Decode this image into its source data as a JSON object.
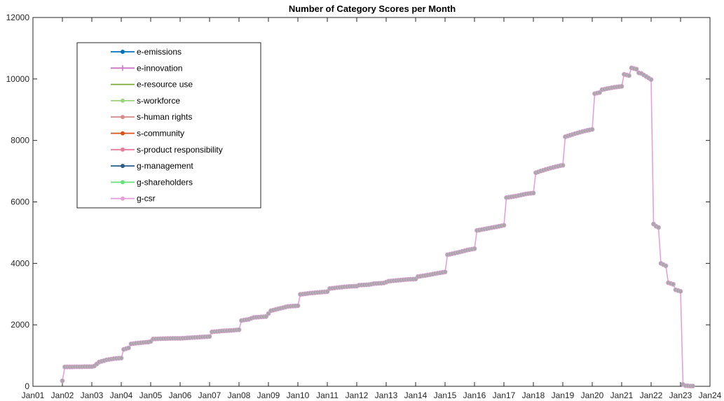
{
  "chart_data": {
    "type": "line",
    "title": "Number of  Category Scores per Month",
    "xlabel": "",
    "ylabel": "",
    "x_unit": "month",
    "xlim": [
      "2001-01",
      "2024-01"
    ],
    "ylim": [
      0,
      12000
    ],
    "grid": false,
    "legend_position": "top-left",
    "x_ticks": [
      "Jan01",
      "Jan02",
      "Jan03",
      "Jan04",
      "Jan05",
      "Jan06",
      "Jan07",
      "Jan08",
      "Jan09",
      "Jan10",
      "Jan11",
      "Jan12",
      "Jan13",
      "Jan14",
      "Jan15",
      "Jan16",
      "Jan17",
      "Jan18",
      "Jan19",
      "Jan20",
      "Jan21",
      "Jan22",
      "Jan23",
      "Jan24"
    ],
    "y_ticks": [
      0,
      2000,
      4000,
      6000,
      8000,
      10000,
      12000
    ],
    "legend": [
      {
        "name": "e-emissions",
        "color": "#0072BD",
        "marker": "circle"
      },
      {
        "name": "e-innovation",
        "color": "#C875C4",
        "marker": "plus"
      },
      {
        "name": "e-resource use",
        "color": "#77AC30",
        "marker": "none"
      },
      {
        "name": "s-workforce",
        "color": "#9BD37E",
        "marker": "circle"
      },
      {
        "name": "s-human rights",
        "color": "#D48C8C",
        "marker": "circle"
      },
      {
        "name": "s-community",
        "color": "#D95319",
        "marker": "circle"
      },
      {
        "name": "s-product responsibility",
        "color": "#E87A9A",
        "marker": "circle"
      },
      {
        "name": "g-management",
        "color": "#2B5D8C",
        "marker": "circle"
      },
      {
        "name": "g-shareholders",
        "color": "#66E27A",
        "marker": "circle"
      },
      {
        "name": "g-csr",
        "color": "#E6A0D8",
        "marker": "circle"
      }
    ],
    "line_color": "#E6A0D8",
    "marker_color": "#A8A8A8",
    "series_data": [
      [
        "2002-01",
        180
      ],
      [
        "2002-02",
        630
      ],
      [
        "2002-05",
        630
      ],
      [
        "2002-06",
        635
      ],
      [
        "2002-09",
        635
      ],
      [
        "2002-10",
        640
      ],
      [
        "2003-01",
        640
      ],
      [
        "2003-02",
        660
      ],
      [
        "2003-04",
        790
      ],
      [
        "2003-07",
        860
      ],
      [
        "2003-10",
        900
      ],
      [
        "2004-01",
        920
      ],
      [
        "2004-02",
        1200
      ],
      [
        "2004-04",
        1250
      ],
      [
        "2004-05",
        1380
      ],
      [
        "2004-08",
        1410
      ],
      [
        "2004-12",
        1440
      ],
      [
        "2005-01",
        1460
      ],
      [
        "2005-02",
        1540
      ],
      [
        "2005-06",
        1550
      ],
      [
        "2005-10",
        1560
      ],
      [
        "2006-01",
        1560
      ],
      [
        "2006-04",
        1575
      ],
      [
        "2006-09",
        1600
      ],
      [
        "2007-01",
        1620
      ],
      [
        "2007-02",
        1770
      ],
      [
        "2007-06",
        1800
      ],
      [
        "2007-10",
        1820
      ],
      [
        "2008-01",
        1840
      ],
      [
        "2008-02",
        2140
      ],
      [
        "2008-05",
        2180
      ],
      [
        "2008-07",
        2240
      ],
      [
        "2008-12",
        2270
      ],
      [
        "2009-02",
        2460
      ],
      [
        "2009-06",
        2540
      ],
      [
        "2009-09",
        2600
      ],
      [
        "2010-01",
        2620
      ],
      [
        "2010-02",
        2990
      ],
      [
        "2010-06",
        3030
      ],
      [
        "2010-10",
        3060
      ],
      [
        "2011-01",
        3080
      ],
      [
        "2011-02",
        3180
      ],
      [
        "2011-06",
        3220
      ],
      [
        "2011-10",
        3250
      ],
      [
        "2012-01",
        3260
      ],
      [
        "2012-02",
        3290
      ],
      [
        "2012-06",
        3310
      ],
      [
        "2012-08",
        3340
      ],
      [
        "2012-12",
        3360
      ],
      [
        "2013-02",
        3420
      ],
      [
        "2013-06",
        3450
      ],
      [
        "2013-10",
        3480
      ],
      [
        "2014-01",
        3490
      ],
      [
        "2014-02",
        3570
      ],
      [
        "2014-06",
        3620
      ],
      [
        "2014-10",
        3680
      ],
      [
        "2015-01",
        3720
      ],
      [
        "2015-02",
        4280
      ],
      [
        "2015-06",
        4350
      ],
      [
        "2015-10",
        4430
      ],
      [
        "2016-01",
        4480
      ],
      [
        "2016-02",
        5070
      ],
      [
        "2016-06",
        5130
      ],
      [
        "2016-10",
        5190
      ],
      [
        "2017-01",
        5240
      ],
      [
        "2017-02",
        6140
      ],
      [
        "2017-06",
        6190
      ],
      [
        "2017-10",
        6260
      ],
      [
        "2018-01",
        6290
      ],
      [
        "2018-02",
        6950
      ],
      [
        "2018-05",
        7030
      ],
      [
        "2018-08",
        7100
      ],
      [
        "2018-12",
        7180
      ],
      [
        "2019-01",
        7190
      ],
      [
        "2019-02",
        8120
      ],
      [
        "2019-06",
        8220
      ],
      [
        "2019-10",
        8310
      ],
      [
        "2020-01",
        8360
      ],
      [
        "2020-02",
        9520
      ],
      [
        "2020-04",
        9560
      ],
      [
        "2020-05",
        9650
      ],
      [
        "2020-08",
        9700
      ],
      [
        "2020-10",
        9730
      ],
      [
        "2021-01",
        9760
      ],
      [
        "2021-02",
        10150
      ],
      [
        "2021-04",
        10110
      ],
      [
        "2021-05",
        10360
      ],
      [
        "2021-07",
        10320
      ],
      [
        "2021-08",
        10200
      ],
      [
        "2021-09",
        10180
      ],
      [
        "2021-11",
        10080
      ],
      [
        "2022-01",
        9980
      ],
      [
        "2022-02",
        5280
      ],
      [
        "2022-03",
        5210
      ],
      [
        "2022-04",
        5170
      ],
      [
        "2022-05",
        4000
      ],
      [
        "2022-07",
        3920
      ],
      [
        "2022-08",
        3370
      ],
      [
        "2022-10",
        3320
      ],
      [
        "2022-11",
        3140
      ],
      [
        "2023-01",
        3090
      ],
      [
        "2023-02",
        60
      ],
      [
        "2023-03",
        20
      ],
      [
        "2023-05",
        10
      ],
      [
        "2023-06",
        10
      ]
    ]
  }
}
